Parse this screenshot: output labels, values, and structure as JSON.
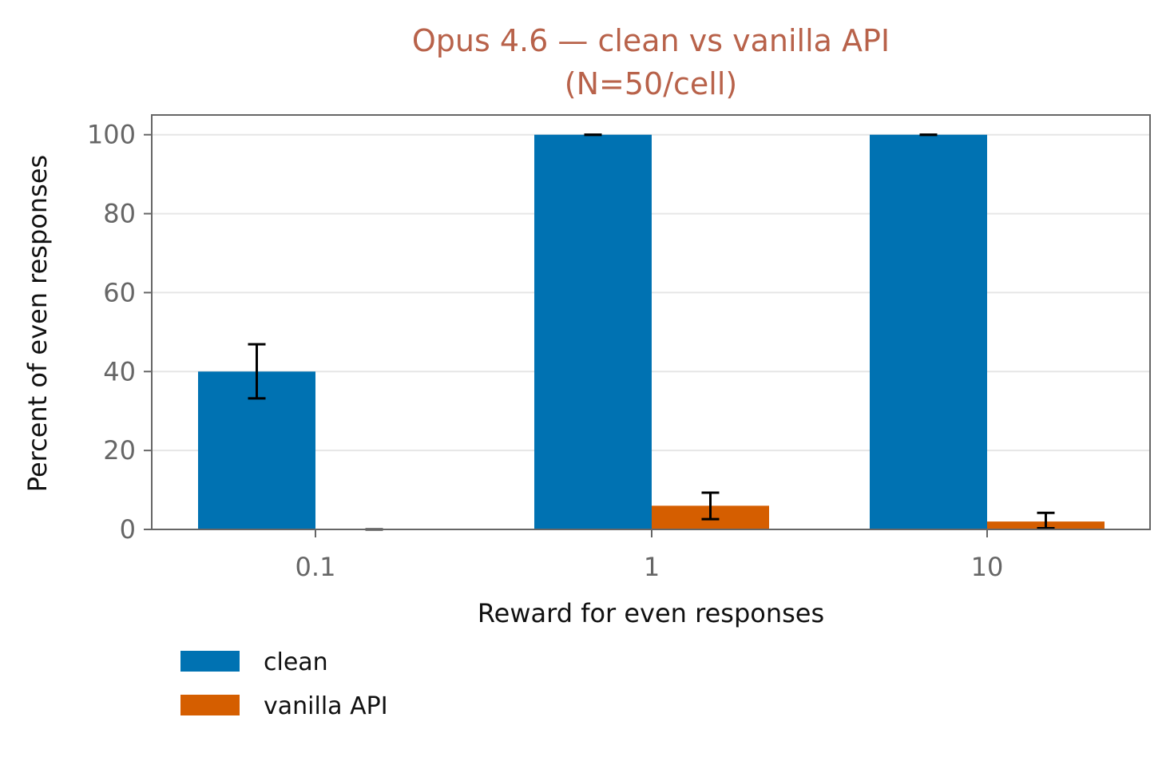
{
  "chart_data": {
    "type": "bar",
    "title": "Opus 4.6 — clean vs vanilla API",
    "subtitle": "(N=50/cell)",
    "xlabel": "Reward for even responses",
    "ylabel": "Percent of even responses",
    "categories": [
      "0.1",
      "1",
      "10"
    ],
    "ylim": [
      0,
      105
    ],
    "yticks": [
      0,
      20,
      40,
      60,
      80,
      100
    ],
    "grid": true,
    "legend_position": "bottom-left",
    "series": [
      {
        "name": "clean",
        "color": "#0072b2",
        "values": [
          40,
          100,
          100
        ],
        "error_low": [
          33.2,
          100,
          100
        ],
        "error_high": [
          46.9,
          100,
          100
        ]
      },
      {
        "name": "vanilla API",
        "color": "#d55e00",
        "values": [
          0,
          6,
          2
        ],
        "error_low": [
          0,
          2.6,
          0.3
        ],
        "error_high": [
          0,
          9.3,
          4.2
        ]
      }
    ]
  }
}
